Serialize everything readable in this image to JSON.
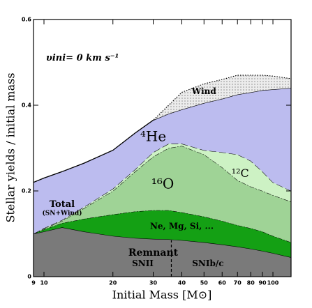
{
  "chart_data": {
    "type": "stacked_area",
    "xlabel": "Initial Mass [M⊙]",
    "ylabel": "Stellar yields / initial mass",
    "x": [
      9,
      10,
      12,
      15,
      20,
      25,
      30,
      35,
      40,
      50,
      60,
      70,
      80,
      90,
      100,
      120
    ],
    "xlim": [
      9,
      120
    ],
    "xscale": "log",
    "xticks": [
      9,
      10,
      20,
      30,
      40,
      50,
      60,
      70,
      80,
      90,
      100
    ],
    "ylim": [
      0,
      0.6
    ],
    "yticks": [
      0,
      0.2,
      0.4,
      0.6
    ],
    "series": [
      {
        "name": "Remnant",
        "color": "#7a7a7a",
        "values": [
          0.1,
          0.105,
          0.115,
          0.105,
          0.095,
          0.09,
          0.088,
          0.087,
          0.085,
          0.08,
          0.075,
          0.07,
          0.065,
          0.06,
          0.055,
          0.045
        ]
      },
      {
        "name": "Ne, Mg, Si, ...",
        "color": "#14a014",
        "values": [
          0,
          0.005,
          0.01,
          0.03,
          0.05,
          0.062,
          0.067,
          0.068,
          0.065,
          0.06,
          0.055,
          0.05,
          0.048,
          0.045,
          0.04,
          0.035
        ]
      },
      {
        "name": "¹⁶O",
        "color": "#9fd396",
        "values": [
          0,
          0.002,
          0.005,
          0.025,
          0.055,
          0.093,
          0.125,
          0.145,
          0.155,
          0.145,
          0.125,
          0.105,
          0.097,
          0.095,
          0.095,
          0.095
        ]
      },
      {
        "name": "¹²C",
        "color": "#cdf2c4",
        "values": [
          0,
          0.001,
          0.002,
          0.003,
          0.005,
          0.005,
          0.01,
          0.01,
          0.005,
          0.01,
          0.035,
          0.06,
          0.06,
          0.045,
          0.03,
          0.025
        ]
      },
      {
        "name": "⁴He",
        "color": "#bcbcef",
        "values": [
          0.12,
          0.117,
          0.113,
          0.102,
          0.09,
          0.085,
          0.075,
          0.07,
          0.08,
          0.11,
          0.125,
          0.14,
          0.16,
          0.19,
          0.217,
          0.24
        ]
      },
      {
        "name": "Wind",
        "color": "#ececec",
        "values": [
          0,
          0,
          0,
          0,
          0,
          0,
          0,
          0.02,
          0.04,
          0.045,
          0.045,
          0.045,
          0.04,
          0.035,
          0.031,
          0.022
        ]
      }
    ],
    "sn_type_boundary": 36,
    "annotations": [
      "Total",
      "(SN+Wind)",
      "SNII",
      "SNIb/c",
      "υini= 0 km s⁻¹"
    ]
  }
}
